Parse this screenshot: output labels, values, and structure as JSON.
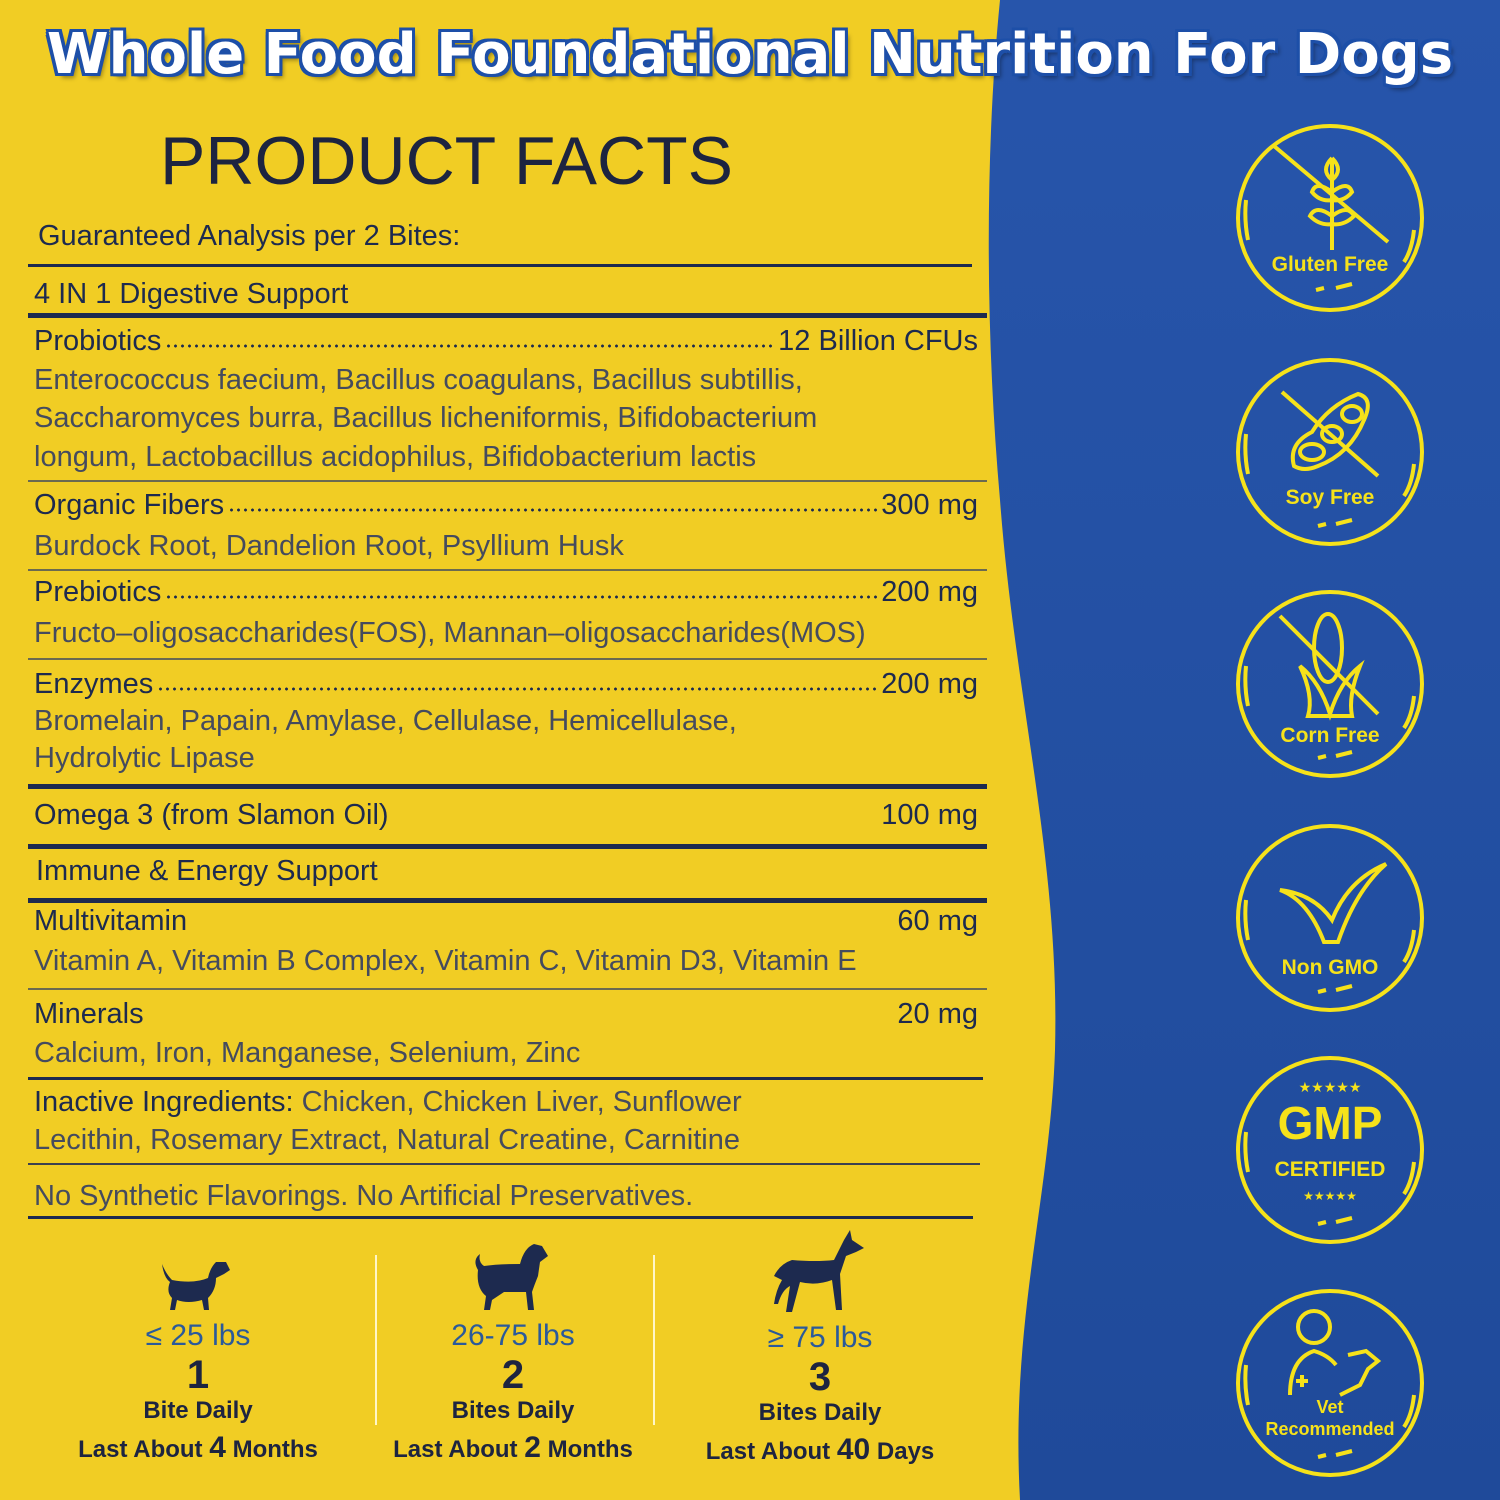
{
  "header": {
    "title": "Whole Food Foundational Nutrition For Dogs",
    "subtitle": "PRODUCT FACTS",
    "analysis_label": "Guaranteed Analysis per 2 Bites:"
  },
  "colors": {
    "background_yellow": "#f1cd24",
    "panel_blue": "#2552a4",
    "text_navy": "#1d2a4f",
    "badge_yellow": "#f6e21a"
  },
  "facts": {
    "digestive_header": "4 IN 1 Digestive Support",
    "probiotics": {
      "name": "Probiotics",
      "amount": "12 Billion CFUs",
      "desc": [
        "Enterococcus faecium, Bacillus coagulans, Bacillus subtillis,",
        "Saccharomyces burra, Bacillus licheniformis, Bifidobacterium",
        "longum, Lactobacillus acidophilus, Bifidobacterium lactis"
      ]
    },
    "fibers": {
      "name": "Organic Fibers",
      "amount": "300 mg",
      "desc": [
        "Burdock Root, Dandelion Root, Psyllium Husk"
      ]
    },
    "prebiotics": {
      "name": "Prebiotics",
      "amount": "200 mg",
      "desc": [
        "Fructo–oligosaccharides(FOS), Mannan–oligosaccharides(MOS)"
      ]
    },
    "enzymes": {
      "name": "Enzymes",
      "amount": "200 mg",
      "desc": [
        "Bromelain, Papain, Amylase, Cellulase, Hemicellulase,",
        "Hydrolytic Lipase"
      ]
    },
    "omega": {
      "name": "Omega 3 (from Slamon Oil)",
      "amount": "100 mg"
    },
    "immune_header": "Immune & Energy Support",
    "multivitamin": {
      "name": "Multivitamin",
      "amount": "60 mg",
      "desc": [
        "Vitamin A, Vitamin B Complex, Vitamin C, Vitamin D3, Vitamin E"
      ]
    },
    "minerals": {
      "name": "Minerals",
      "amount": "20 mg",
      "desc": [
        "Calcium, Iron, Manganese, Selenium, Zinc"
      ]
    },
    "inactive": {
      "label": "Inactive Ingredients:",
      "line1": " Chicken, Chicken Liver, Sunflower",
      "line2": "Lecithin, Rosemary Extract, Natural Creatine, Carnitine"
    },
    "note": "No Synthetic Flavorings. No Artificial Preservatives."
  },
  "dosage": [
    {
      "icon": "small-dog-icon",
      "weight": "≤ 25 lbs",
      "count": "1",
      "unit": "Bite Daily",
      "last_prefix": "Last About ",
      "last_num": "4",
      "last_suffix": " Months"
    },
    {
      "icon": "medium-dog-icon",
      "weight": "26-75 lbs",
      "count": "2",
      "unit": "Bites Daily",
      "last_prefix": "Last About ",
      "last_num": "2",
      "last_suffix": " Months"
    },
    {
      "icon": "large-dog-icon",
      "weight": "≥ 75 lbs",
      "count": "3",
      "unit": "Bites Daily",
      "last_prefix": "Last About ",
      "last_num": "40",
      "last_suffix": " Days"
    }
  ],
  "badges": [
    {
      "icon": "wheat-crossed-icon",
      "label": "Gluten Free"
    },
    {
      "icon": "soybean-crossed-icon",
      "label": "Soy Free"
    },
    {
      "icon": "corn-crossed-icon",
      "label": "Corn Free"
    },
    {
      "icon": "checkmark-icon",
      "label": "Non GMO"
    },
    {
      "icon": "gmp-stars-icon",
      "label": "CERTIFIED",
      "title": "GMP"
    },
    {
      "icon": "vet-with-dog-icon",
      "label": "Vet Recommended",
      "label_line1": "Vet",
      "label_line2": "Recommended"
    }
  ]
}
